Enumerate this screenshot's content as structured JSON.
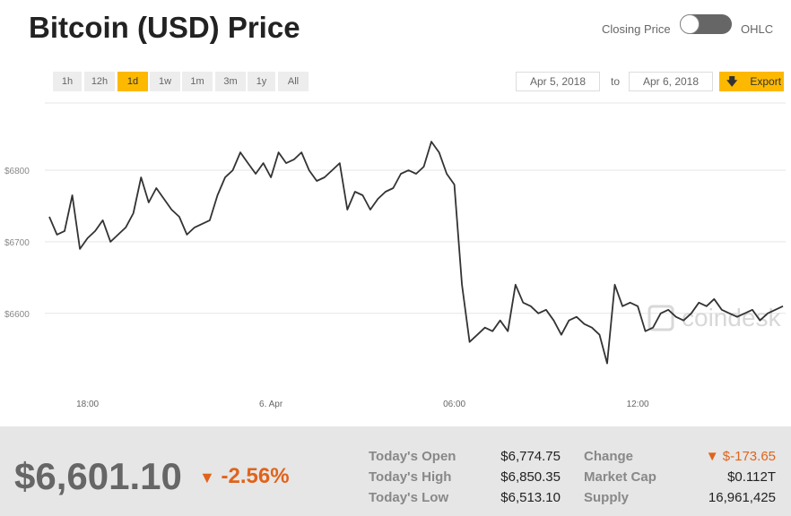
{
  "header": {
    "title": "Bitcoin (USD) Price",
    "toggle_left": "Closing Price",
    "toggle_right": "OHLC"
  },
  "toolbar": {
    "ranges": [
      "1h",
      "12h",
      "1d",
      "1w",
      "1m",
      "3m",
      "1y",
      "All"
    ],
    "active_range": 2,
    "date_from": "Apr 5, 2018",
    "date_sep": "to",
    "date_to": "Apr 6, 2018",
    "export": "Export"
  },
  "chart_data": {
    "type": "line",
    "color": "#333333",
    "grid": true,
    "watermark": "coindesk",
    "categories": [
      null,
      null,
      null,
      null,
      null,
      "18:00",
      null,
      null,
      null,
      null,
      null,
      null,
      null,
      null,
      null,
      null,
      null,
      null,
      null,
      null,
      null,
      null,
      null,
      null,
      null,
      null,
      null,
      null,
      null,
      "6. Apr",
      null,
      null,
      null,
      null,
      null,
      null,
      null,
      null,
      null,
      null,
      null,
      null,
      null,
      null,
      null,
      null,
      null,
      null,
      null,
      null,
      null,
      null,
      null,
      "06:00",
      null,
      null,
      null,
      null,
      null,
      null,
      null,
      null,
      null,
      null,
      null,
      null,
      null,
      null,
      null,
      null,
      null,
      null,
      null,
      null,
      null,
      null,
      null,
      "12:00",
      null,
      null,
      null,
      null,
      null,
      null,
      null,
      null,
      null,
      null,
      null,
      null,
      null,
      null,
      null,
      null,
      null,
      null,
      null
    ],
    "values": [
      6735,
      6710,
      6715,
      6765,
      6690,
      6705,
      6715,
      6730,
      6700,
      6710,
      6720,
      6740,
      6790,
      6755,
      6775,
      6760,
      6745,
      6735,
      6710,
      6720,
      6725,
      6730,
      6765,
      6790,
      6800,
      6825,
      6810,
      6795,
      6810,
      6790,
      6825,
      6810,
      6815,
      6825,
      6800,
      6785,
      6790,
      6800,
      6810,
      6745,
      6770,
      6765,
      6745,
      6760,
      6770,
      6775,
      6795,
      6800,
      6795,
      6805,
      6840,
      6825,
      6795,
      6780,
      6640,
      6560,
      6570,
      6580,
      6575,
      6590,
      6575,
      6640,
      6615,
      6610,
      6600,
      6605,
      6590,
      6570,
      6590,
      6595,
      6585,
      6580,
      6570,
      6530,
      6640,
      6610,
      6615,
      6610,
      6575,
      6580,
      6600,
      6605,
      6595,
      6590,
      6600,
      6615,
      6610,
      6620,
      6605,
      6600,
      6595,
      6600,
      6605,
      6590,
      6600,
      6605,
      6610
    ],
    "ylim": [
      6502,
      6894
    ],
    "yticks": [
      {
        "value": 6600,
        "label": "$6600"
      },
      {
        "value": 6700,
        "label": "$6700"
      },
      {
        "value": 6800,
        "label": "$6800"
      }
    ]
  },
  "footer": {
    "price": "$6,601.10",
    "change_pct": "-2.56%",
    "left": [
      {
        "label": "Today's Open",
        "value": "$6,774.75"
      },
      {
        "label": "Today's High",
        "value": "$6,850.35"
      },
      {
        "label": "Today's Low",
        "value": "$6,513.10"
      }
    ],
    "right": [
      {
        "label": "Change",
        "value": "$-173.65"
      },
      {
        "label": "Market Cap",
        "value": "$0.112T"
      },
      {
        "label": "Supply",
        "value": "16,961,425"
      }
    ]
  }
}
